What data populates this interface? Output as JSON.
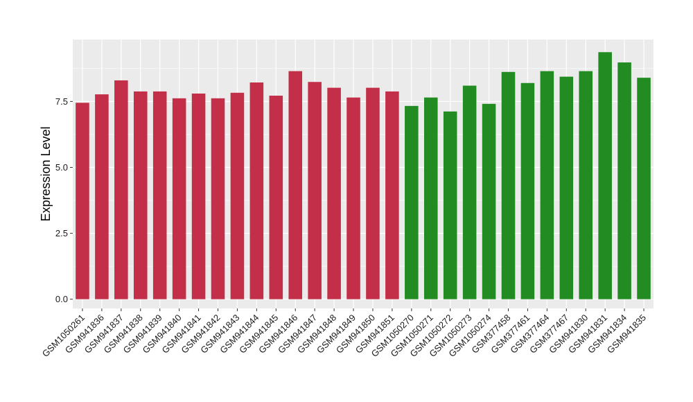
{
  "chart_data": {
    "type": "bar",
    "title": "",
    "xlabel": "",
    "ylabel": "Expression Level",
    "ylim": [
      -0.35,
      9.85
    ],
    "yticks": [
      0.0,
      2.5,
      5.0,
      7.5
    ],
    "ytick_labels": [
      "0.0",
      "2.5",
      "5.0",
      "7.5"
    ],
    "grid": true,
    "legend": "none",
    "categories": [
      "GSM1050261",
      "GSM941836",
      "GSM941837",
      "GSM941838",
      "GSM941839",
      "GSM941840",
      "GSM941841",
      "GSM941842",
      "GSM941843",
      "GSM941844",
      "GSM941845",
      "GSM941846",
      "GSM941847",
      "GSM941848",
      "GSM941849",
      "GSM941850",
      "GSM941851",
      "GSM1050270",
      "GSM1050271",
      "GSM1050272",
      "GSM1050273",
      "GSM1050274",
      "GSM377458",
      "GSM377461",
      "GSM377464",
      "GSM377467",
      "GSM941830",
      "GSM941831",
      "GSM941834",
      "GSM941835"
    ],
    "values": [
      7.45,
      7.77,
      8.3,
      7.88,
      7.88,
      7.62,
      7.8,
      7.62,
      7.83,
      8.22,
      7.72,
      8.65,
      8.24,
      8.02,
      7.65,
      8.02,
      7.88,
      7.33,
      7.65,
      7.12,
      8.1,
      7.41,
      8.62,
      8.2,
      8.65,
      8.44,
      8.65,
      9.37,
      8.98,
      8.4
    ],
    "colors": [
      "#C32E48",
      "#C32E48",
      "#C32E48",
      "#C32E48",
      "#C32E48",
      "#C32E48",
      "#C32E48",
      "#C32E48",
      "#C32E48",
      "#C32E48",
      "#C32E48",
      "#C32E48",
      "#C32E48",
      "#C32E48",
      "#C32E48",
      "#C32E48",
      "#C32E48",
      "#228B22",
      "#228B22",
      "#228B22",
      "#228B22",
      "#228B22",
      "#228B22",
      "#228B22",
      "#228B22",
      "#228B22",
      "#228B22",
      "#228B22",
      "#228B22",
      "#228B22"
    ],
    "panel_background": "#EBEBEB",
    "grid_color": "#FFFFFF"
  }
}
